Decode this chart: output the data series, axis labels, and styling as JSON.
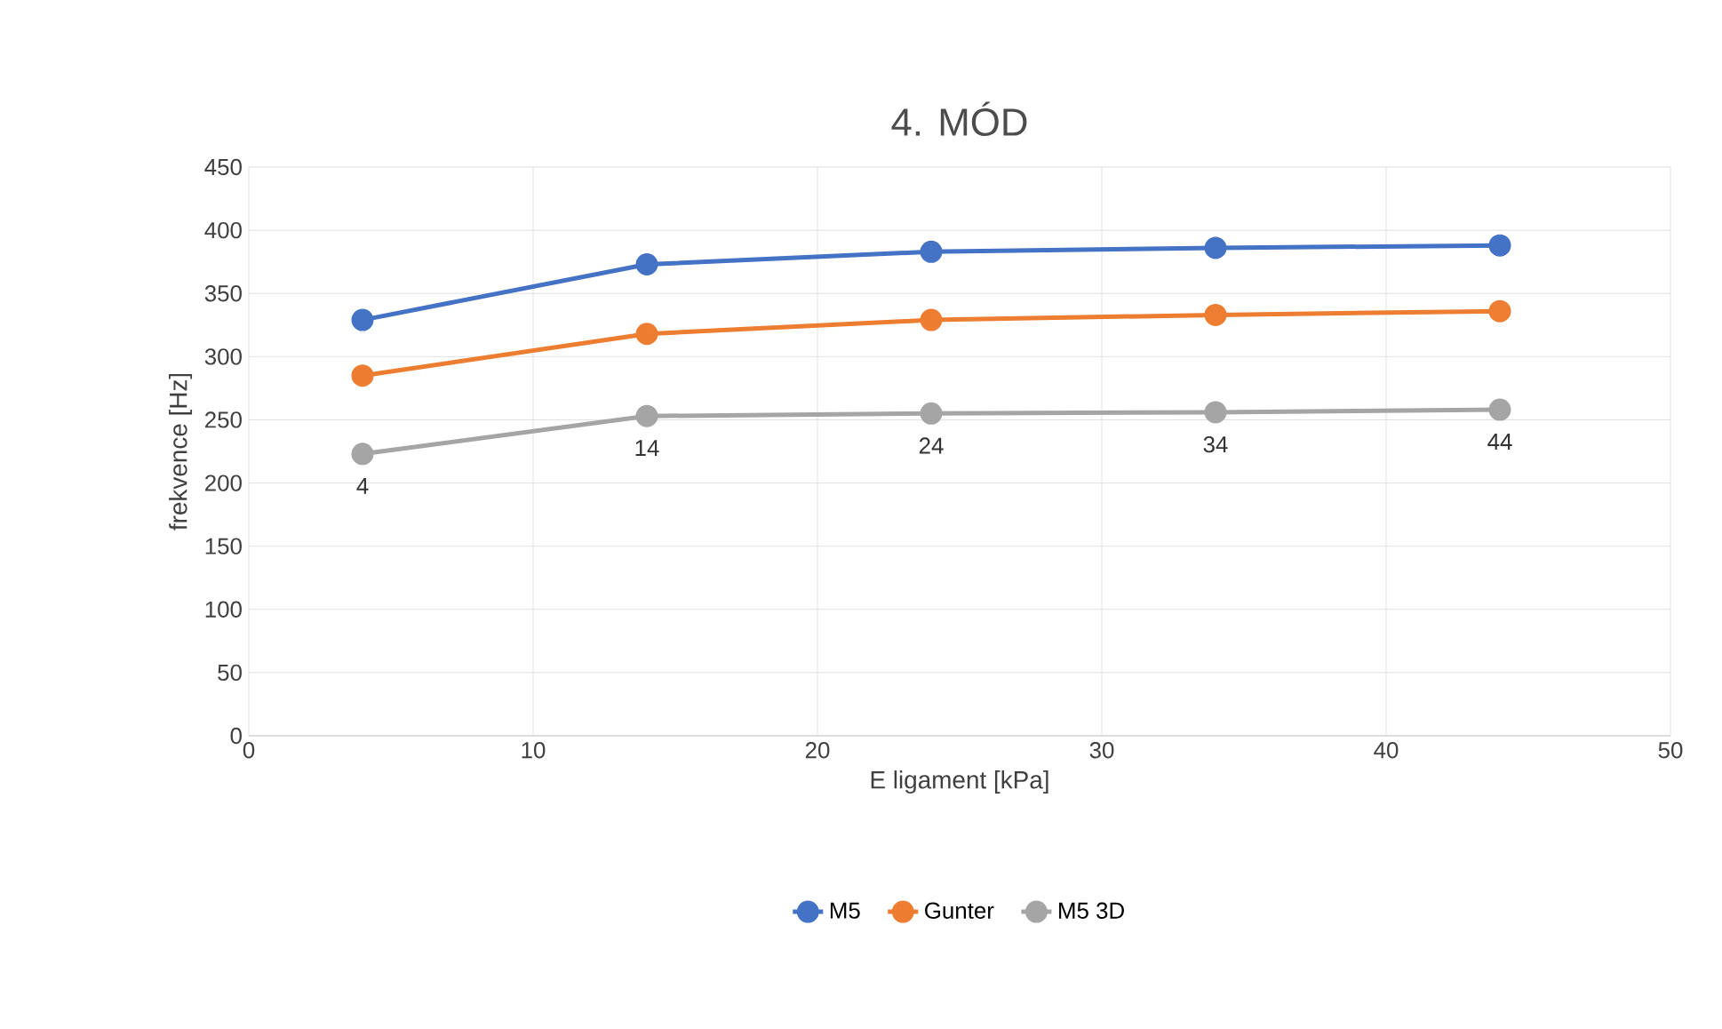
{
  "chart_data": {
    "type": "line",
    "title": "4. MÓD",
    "xlabel": "E ligament [kPa]",
    "ylabel": "frekvence [Hz]",
    "x": [
      4,
      14,
      24,
      34,
      44
    ],
    "series": [
      {
        "name": "M5",
        "color": "#4472c4",
        "values": [
          329,
          373,
          383,
          386,
          388
        ]
      },
      {
        "name": "Gunter",
        "color": "#ed7d31",
        "values": [
          285,
          318,
          329,
          333,
          336
        ]
      },
      {
        "name": "M5 3D",
        "color": "#a5a5a5",
        "values": [
          223,
          253,
          255,
          256,
          258
        ]
      }
    ],
    "xlim": [
      0,
      50
    ],
    "xticks": [
      0,
      10,
      20,
      30,
      40,
      50
    ],
    "ylim": [
      0,
      450
    ],
    "yticks": [
      0,
      50,
      100,
      150,
      200,
      250,
      300,
      350,
      400,
      450
    ],
    "grid": true,
    "legend": "bottom",
    "marker": "circle",
    "line_style": "solid",
    "annotations": [
      {
        "text": "4",
        "x": 4,
        "y": 223
      },
      {
        "text": "14",
        "x": 14,
        "y": 253
      },
      {
        "text": "24",
        "x": 24,
        "y": 255
      },
      {
        "text": "34",
        "x": 34,
        "y": 256
      },
      {
        "text": "44",
        "x": 44,
        "y": 258
      }
    ]
  }
}
